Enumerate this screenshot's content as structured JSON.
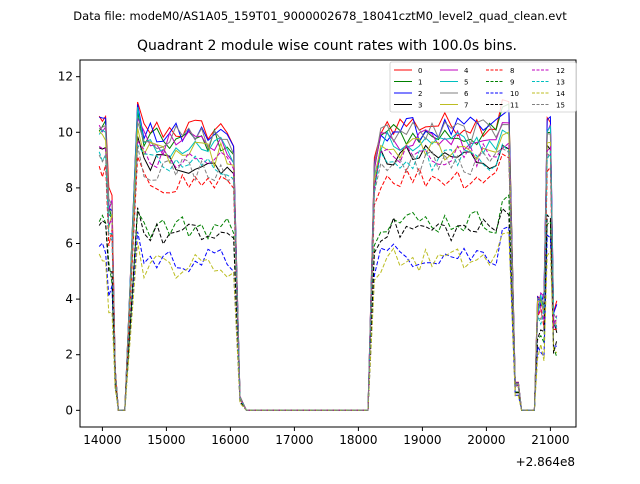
{
  "figure": {
    "suptitle": "Data file: modeM0/AS1A05_159T01_9000002678_18041cztM0_level2_quad_clean.evt",
    "title": "Quadrant 2 module wise count rates with 100.0s bins."
  },
  "chart_data": {
    "type": "line",
    "title": "Quadrant 2 module wise count rates with 100.0s bins.",
    "xlabel": "",
    "ylabel": "",
    "x_offset_label": "+2.864e8",
    "xlim": [
      13650,
      21400
    ],
    "ylim": [
      -0.6,
      12.6
    ],
    "xticks": [
      14000,
      15000,
      16000,
      17000,
      18000,
      19000,
      20000,
      21000
    ],
    "yticks": [
      0,
      2,
      4,
      6,
      8,
      10,
      12
    ],
    "grid": false,
    "legend_position": "top-right",
    "legend_columns": 4,
    "segments": [
      {
        "start": 13950,
        "step": 50,
        "count": 9
      },
      {
        "start": 14550,
        "step": 100,
        "count": 16
      },
      {
        "start": 16150,
        "step": 100,
        "count": 21
      },
      {
        "start": 18250,
        "step": 100,
        "count": 23
      },
      {
        "start": 20500,
        "step": 50,
        "count": 13
      }
    ],
    "series": [
      {
        "name": "0",
        "color": "#ff0000",
        "dash": "solid",
        "level": 10.1,
        "p1": 11.0,
        "p2": 11.2,
        "start": 10.5
      },
      {
        "name": "1",
        "color": "#008000",
        "dash": "solid",
        "level": 9.7,
        "p1": 10.7,
        "p2": 10.9,
        "start": 10.2
      },
      {
        "name": "2",
        "color": "#0000ff",
        "dash": "solid",
        "level": 9.9,
        "p1": 10.9,
        "p2": 10.7,
        "start": 10.4
      },
      {
        "name": "3",
        "color": "#000000",
        "dash": "solid",
        "level": 8.9,
        "p1": 9.8,
        "p2": 9.4,
        "start": 9.6
      },
      {
        "name": "4",
        "color": "#bf00bf",
        "dash": "solid",
        "level": 9.6,
        "p1": 10.6,
        "p2": 10.5,
        "start": 10.1
      },
      {
        "name": "5",
        "color": "#00bfbf",
        "dash": "solid",
        "level": 9.4,
        "p1": 10.8,
        "p2": 10.1,
        "start": 10.0
      },
      {
        "name": "6",
        "color": "#808080",
        "dash": "solid",
        "level": 9.8,
        "p1": 10.5,
        "p2": 10.4,
        "start": 10.2
      },
      {
        "name": "7",
        "color": "#bcbd22",
        "dash": "solid",
        "level": 9.2,
        "p1": 10.2,
        "p2": 10.0,
        "start": 9.8
      },
      {
        "name": "8",
        "color": "#ff0000",
        "dash": "dashed",
        "level": 8.2,
        "p1": 9.0,
        "p2": 9.2,
        "start": 8.6
      },
      {
        "name": "9",
        "color": "#008000",
        "dash": "dashed",
        "level": 6.6,
        "p1": 7.2,
        "p2": 7.6,
        "start": 7.0
      },
      {
        "name": "10",
        "color": "#0000ff",
        "dash": "dashed",
        "level": 5.4,
        "p1": 6.4,
        "p2": 6.6,
        "start": 5.8
      },
      {
        "name": "11",
        "color": "#000000",
        "dash": "dashed",
        "level": 6.3,
        "p1": 7.4,
        "p2": 7.2,
        "start": 6.6
      },
      {
        "name": "12",
        "color": "#bf00bf",
        "dash": "dashed",
        "level": 9.0,
        "p1": 9.8,
        "p2": 9.6,
        "start": 9.4
      },
      {
        "name": "13",
        "color": "#00bfbf",
        "dash": "dashed",
        "level": 8.8,
        "p1": 9.6,
        "p2": 9.4,
        "start": 9.2
      },
      {
        "name": "14",
        "color": "#bcbd22",
        "dash": "dashed",
        "level": 5.2,
        "p1": 6.0,
        "p2": 6.3,
        "start": 5.6
      },
      {
        "name": "15",
        "color": "#808080",
        "dash": "dashed",
        "level": 8.7,
        "p1": 9.5,
        "p2": 9.3,
        "start": 9.0
      }
    ]
  }
}
